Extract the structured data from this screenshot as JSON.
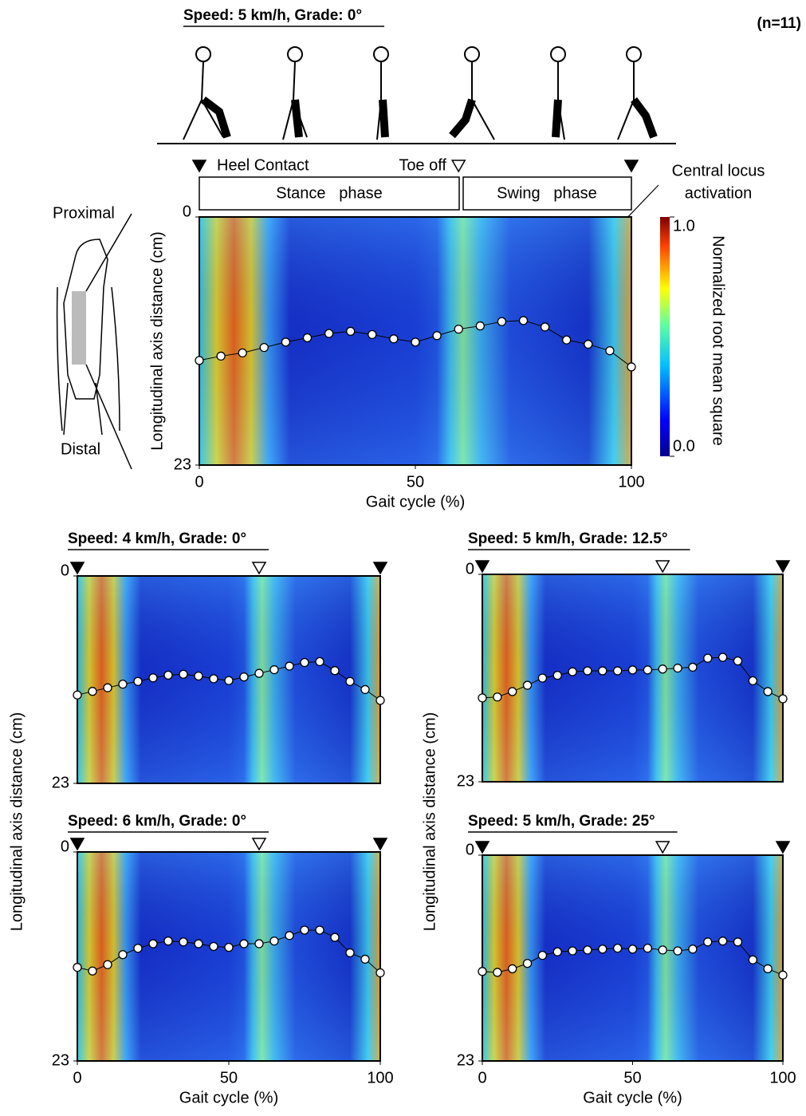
{
  "figure": {
    "n": "(n=11)",
    "heel_contact": "Heel Contact",
    "toe_off": "Toe off",
    "stance": "Stance   phase",
    "swing": "Swing   phase",
    "annotation": [
      "Central locus",
      "activation"
    ],
    "proximal": "Proximal",
    "distal": "Distal"
  },
  "colorbar": {
    "label": "Normalized root mean square",
    "ticks": [
      {
        "value": 1,
        "label": "1.0"
      },
      {
        "value": 0,
        "label": "0.0"
      }
    ]
  },
  "chart_data": [
    {
      "type": "heatmap",
      "title": "Speed: 5 km/h, Grade: 0°",
      "x": [
        0,
        5,
        10,
        15,
        20,
        25,
        30,
        35,
        40,
        45,
        50,
        55,
        60,
        65,
        70,
        75,
        80,
        85,
        90,
        95,
        100
      ],
      "values": [
        13.3,
        12.9,
        12.6,
        12.1,
        11.6,
        11.2,
        10.8,
        10.6,
        10.9,
        11.3,
        11.6,
        11.0,
        10.4,
        10.1,
        9.7,
        9.6,
        10.2,
        11.4,
        11.8,
        12.4,
        13.9
      ],
      "toe_off": 60,
      "xlim": [
        0,
        100
      ],
      "ylim": [
        0,
        23
      ],
      "xticks": [
        0,
        50,
        100
      ],
      "yticks": [
        0,
        23
      ],
      "xlabel": "Gait cycle (%)",
      "ylabel": "Longitudinal axis distance (cm)"
    },
    {
      "type": "heatmap",
      "title": "Speed: 4 km/h, Grade: 0°",
      "x": [
        0,
        5,
        10,
        15,
        20,
        25,
        30,
        35,
        40,
        45,
        50,
        55,
        60,
        65,
        70,
        75,
        80,
        85,
        90,
        95,
        100
      ],
      "values": [
        13.2,
        12.8,
        12.4,
        12.0,
        11.7,
        11.3,
        11.0,
        10.9,
        11.1,
        11.4,
        11.6,
        11.2,
        10.8,
        10.4,
        10.0,
        9.6,
        9.5,
        10.5,
        11.7,
        12.6,
        13.8
      ],
      "toe_off": 60,
      "xlim": [
        0,
        100
      ],
      "ylim": [
        0,
        23
      ],
      "yticks": [
        0,
        23
      ],
      "ylabel": "Longitudinal axis distance (cm)"
    },
    {
      "type": "heatmap",
      "title": "Speed: 5 km/h, Grade: 12.5°",
      "x": [
        0,
        5,
        10,
        15,
        20,
        25,
        30,
        35,
        40,
        45,
        50,
        55,
        60,
        65,
        70,
        75,
        80,
        85,
        90,
        95,
        100
      ],
      "values": [
        13.7,
        13.6,
        13.0,
        12.3,
        11.5,
        11.2,
        10.8,
        10.7,
        10.7,
        10.7,
        10.6,
        10.6,
        10.5,
        10.4,
        10.3,
        9.3,
        9.2,
        9.6,
        11.8,
        13.0,
        13.8
      ],
      "toe_off": 60,
      "xlim": [
        0,
        100
      ],
      "ylim": [
        0,
        23
      ],
      "yticks": [
        0,
        23
      ],
      "ylabel": "Longitudinal axis distance (cm)"
    },
    {
      "type": "heatmap",
      "title": "Speed: 6 km/h, Grade: 0°",
      "x": [
        0,
        5,
        10,
        15,
        20,
        25,
        30,
        35,
        40,
        45,
        50,
        55,
        60,
        65,
        70,
        75,
        80,
        85,
        90,
        95,
        100
      ],
      "values": [
        12.7,
        13.1,
        12.4,
        11.3,
        10.6,
        10.1,
        9.8,
        9.9,
        10.1,
        10.4,
        10.5,
        10.1,
        10.1,
        9.8,
        9.2,
        8.6,
        8.6,
        9.4,
        11.1,
        11.8,
        13.3
      ],
      "toe_off": 60,
      "xlim": [
        0,
        100
      ],
      "ylim": [
        0,
        23
      ],
      "xticks": [
        0,
        50,
        100
      ],
      "yticks": [
        0,
        23
      ],
      "xlabel": "Gait cycle (%)"
    },
    {
      "type": "heatmap",
      "title": "Speed: 5 km/h, Grade: 25°",
      "x": [
        0,
        5,
        10,
        15,
        20,
        25,
        30,
        35,
        40,
        45,
        50,
        55,
        60,
        65,
        70,
        75,
        80,
        85,
        90,
        95,
        100
      ],
      "values": [
        13.0,
        13.1,
        12.7,
        12.1,
        11.2,
        10.8,
        10.7,
        10.6,
        10.5,
        10.4,
        10.5,
        10.4,
        10.6,
        10.7,
        10.5,
        9.7,
        9.6,
        9.7,
        11.7,
        12.7,
        13.4
      ],
      "toe_off": 60,
      "xlim": [
        0,
        100
      ],
      "ylim": [
        0,
        23
      ],
      "xticks": [
        0,
        50,
        100
      ],
      "yticks": [
        0,
        23
      ],
      "xlabel": "Gait cycle (%)"
    }
  ]
}
